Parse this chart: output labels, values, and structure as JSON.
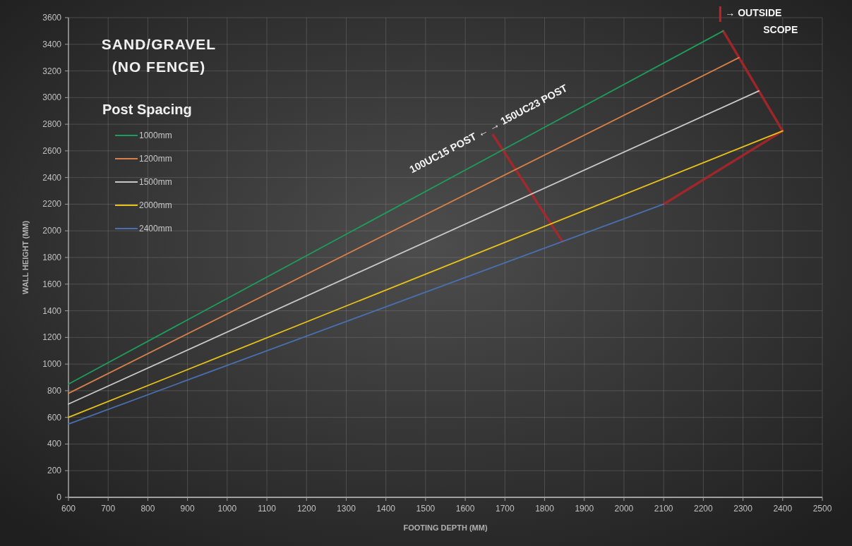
{
  "chart_data": {
    "type": "line",
    "title": "SAND/GRAVEL",
    "subtitle": "(NO FENCE)",
    "xlabel": "FOOTING DEPTH (MM)",
    "ylabel": "WALL HEIGHT (MM)",
    "legend_title": "Post Spacing",
    "xlim": [
      600,
      2500
    ],
    "xticks": [
      600,
      700,
      800,
      900,
      1000,
      1100,
      1200,
      1300,
      1400,
      1500,
      1600,
      1700,
      1800,
      1900,
      2000,
      2100,
      2200,
      2300,
      2400,
      2500
    ],
    "ylim": [
      0,
      3600
    ],
    "yticks": [
      0,
      200,
      400,
      600,
      800,
      1000,
      1200,
      1400,
      1600,
      1800,
      2000,
      2200,
      2400,
      2600,
      2800,
      3000,
      3200,
      3400,
      3600
    ],
    "grid": true,
    "legend": "top left",
    "line_style": "solid",
    "series": [
      {
        "name": "1000mm",
        "color": "#1e9c5a",
        "x": [
          600,
          2250
        ],
        "values": [
          850,
          3500
        ]
      },
      {
        "name": "1200mm",
        "color": "#d9804a",
        "x": [
          600,
          2290
        ],
        "values": [
          780,
          3300
        ]
      },
      {
        "name": "1500mm",
        "color": "#c8c8c8",
        "x": [
          600,
          2340
        ],
        "values": [
          700,
          3050
        ]
      },
      {
        "name": "2000mm",
        "color": "#e8c21a",
        "x": [
          600,
          2400
        ],
        "values": [
          600,
          2750
        ]
      },
      {
        "name": "2400mm",
        "color": "#4a6fb0",
        "x": [
          600,
          2100
        ],
        "values": [
          550,
          2200
        ]
      },
      {
        "color": "#b0242a",
        "x": [
          2250,
          2290,
          2340,
          2400,
          2100
        ],
        "values": [
          3500,
          3300,
          3050,
          2750,
          2200
        ]
      },
      {
        "color": "#b0242a",
        "x": [
          1670,
          1845
        ],
        "values": [
          2720,
          1920
        ]
      }
    ],
    "annotations": [
      {
        "text": "100UC15 POST ← → 150UC23 POST",
        "x": 1675,
        "y": 2700
      },
      "→ OUTSIDE SCOPE"
    ]
  }
}
